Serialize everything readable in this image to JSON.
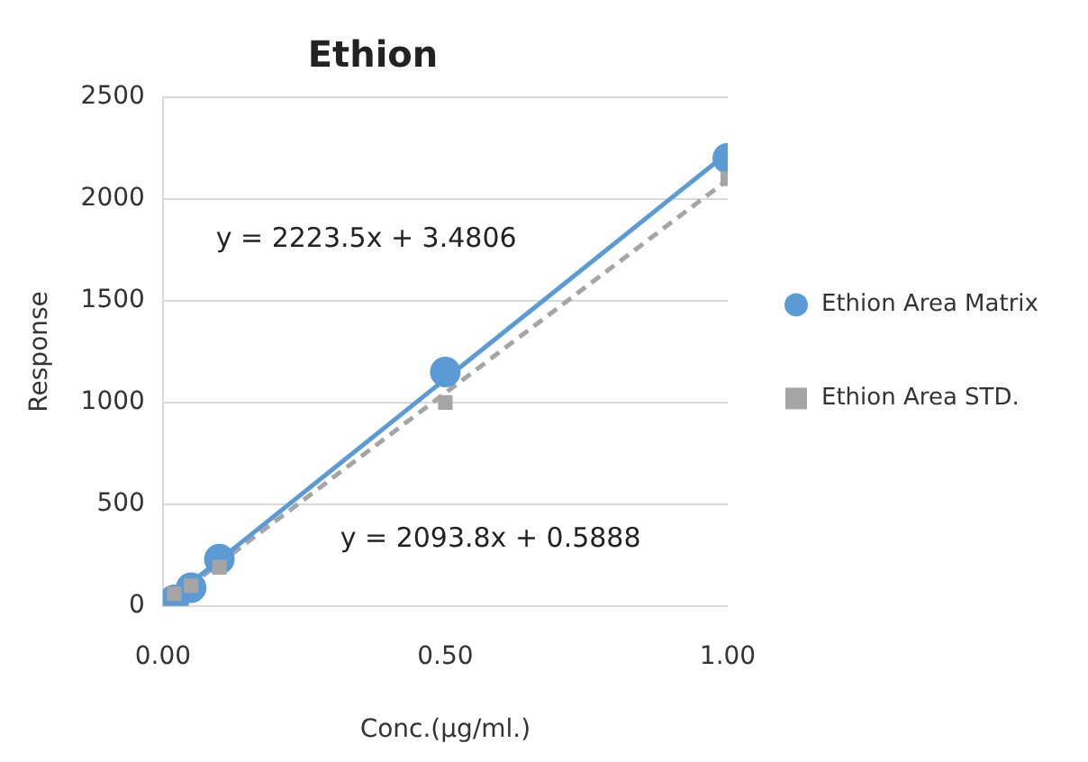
{
  "chart_data": {
    "type": "scatter",
    "title": "Ethion",
    "xlabel": "Conc.(µg/ml.)",
    "ylabel": "Response",
    "xlim": [
      0,
      1
    ],
    "xticks": [
      {
        "value": 0,
        "label": "0.00"
      },
      {
        "value": 0.5,
        "label": "0.50"
      },
      {
        "value": 1,
        "label": "1.00"
      }
    ],
    "ylim": [
      0,
      2500
    ],
    "yticks": [
      0,
      500,
      1000,
      1500,
      2000,
      2500
    ],
    "grid": "y",
    "legend": "right",
    "series": [
      {
        "name": "Ethion Area Matrix",
        "type": "scatter",
        "marker": "circle",
        "color": "#5b9bd5",
        "x": [
          0.02,
          0.05,
          0.1,
          0.5,
          1
        ],
        "values": [
          30,
          90,
          230,
          1150,
          2200
        ]
      },
      {
        "name": "Ethion Area STD.",
        "type": "scatter",
        "marker": "square",
        "color": "#a5a5a5",
        "x": [
          0.02,
          0.05,
          0.1,
          0.5,
          1
        ],
        "values": [
          60,
          100,
          190,
          1000,
          2100
        ]
      },
      {
        "type": "line",
        "marker": "none",
        "line_style": "solid",
        "color": "#5b9bd5",
        "x": [
          0.02,
          1
        ],
        "values": [
          48,
          2227
        ]
      },
      {
        "type": "line",
        "marker": "none",
        "line_style": "dashed",
        "color": "#a5a5a5",
        "x": [
          0.02,
          1
        ],
        "values": [
          42,
          2094
        ]
      }
    ],
    "annotations": [
      "y = 2223.5x + 3.4806",
      "y = 2093.8x + 0.5888"
    ]
  }
}
